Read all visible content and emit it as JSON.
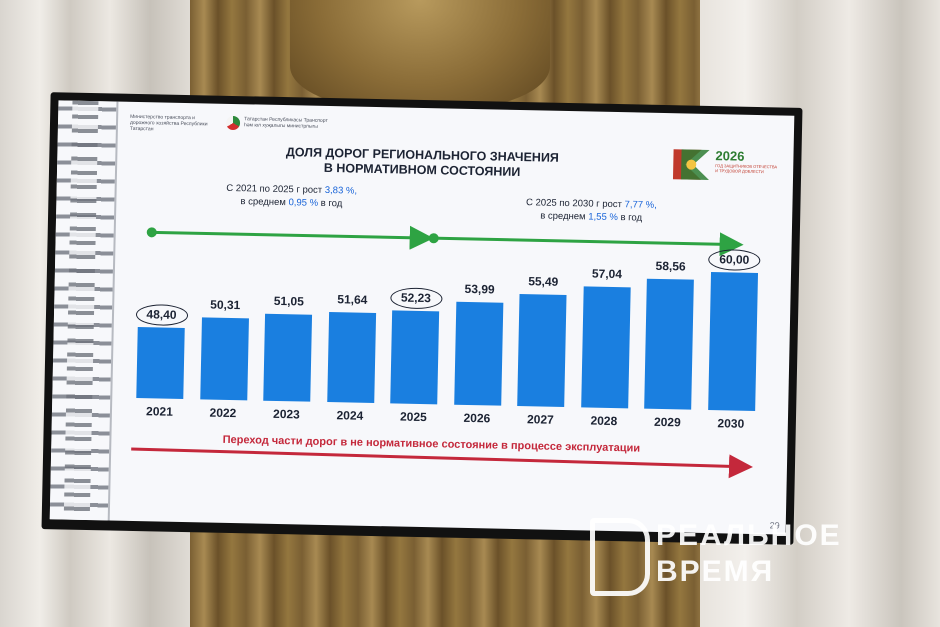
{
  "slide": {
    "ministry_left": "Министерство транспорта и дорожного хозяйства Республики Татарстан",
    "ministry_right": "Татарстан Республикасы Транспорт һәм юл хуҗалыгы министрлыгы",
    "title_line1": "ДОЛЯ ДОРОГ РЕГИОНАЛЬНОГО ЗНАЧЕНИЯ",
    "title_line2": "В НОРМАТИВНОМ СОСТОЯНИИ",
    "note1_line1_prefix": "С 2021 по 2025 г рост",
    "note1_line1_value": "3,83 %,",
    "note1_line2_prefix": "в среднем",
    "note1_line2_value": "0,95 %",
    "note1_line2_suffix": "в год",
    "note2_line1_prefix": "С 2025 по 2030 г рост",
    "note2_line1_value": "7,77 %,",
    "note2_line2_prefix": "в среднем",
    "note2_line2_value": "1,55 %",
    "note2_line2_suffix": "в год",
    "bottom_arrow_text": "Переход части дорог в не нормативное состояние в процессе эксплуатации",
    "page_number": "29",
    "logo_year": "2026",
    "logo_subtitle": "ГОД ЗАЩИТНИКОВ ОТЕЧЕСТВА И ТРУДОВОЙ ДОБЛЕСТИ",
    "colors": {
      "bar": "#1a7fe0",
      "green_arrow": "#2ea343",
      "red_arrow": "#c4283b",
      "highlight": "#1763d8"
    }
  },
  "chart_data": {
    "type": "bar",
    "categories": [
      "2021",
      "2022",
      "2023",
      "2024",
      "2025",
      "2026",
      "2027",
      "2028",
      "2029",
      "2030"
    ],
    "values": [
      48.4,
      50.31,
      51.05,
      51.64,
      52.23,
      53.99,
      55.49,
      57.04,
      58.56,
      60.0
    ],
    "value_labels": [
      "48,40",
      "50,31",
      "51,05",
      "51,64",
      "52,23",
      "53,99",
      "55,49",
      "57,04",
      "58,56",
      "60,00"
    ],
    "circled": [
      "2021",
      "2025",
      "2030"
    ],
    "title": "ДОЛЯ ДОРОГ РЕГИОНАЛЬНОГО ЗНАЧЕНИЯ В НОРМАТИВНОМ СОСТОЯНИИ",
    "ylim": [
      0,
      60
    ],
    "grid": false,
    "legend": "none"
  },
  "watermark": {
    "line1": "РЕАЛЬНОЕ",
    "line2": "ВРЕМЯ"
  }
}
